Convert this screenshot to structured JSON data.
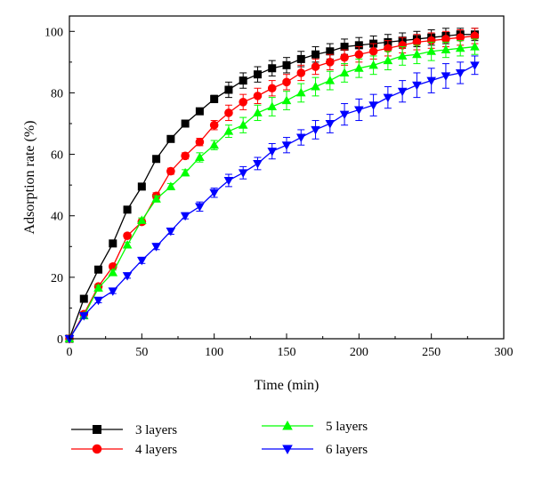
{
  "chart_data": {
    "type": "line",
    "xlabel": "Time (min)",
    "ylabel": "Adsorption rate (%)",
    "xlim": [
      0,
      300
    ],
    "ylim": [
      0,
      105
    ],
    "xticks": [
      0,
      50,
      100,
      150,
      200,
      250,
      300
    ],
    "yticks": [
      0,
      20,
      40,
      60,
      80,
      100
    ],
    "grid": false,
    "legend_position": "bottom",
    "x": [
      0,
      10,
      20,
      30,
      40,
      50,
      60,
      70,
      80,
      90,
      100,
      110,
      120,
      130,
      140,
      150,
      160,
      170,
      180,
      190,
      200,
      210,
      220,
      230,
      240,
      250,
      260,
      270,
      280
    ],
    "series": [
      {
        "name": "3 layers",
        "color": "#000000",
        "marker": "square",
        "values": [
          0,
          13,
          22.5,
          31,
          42,
          49.5,
          58.5,
          65,
          70,
          74,
          78,
          81,
          84,
          86,
          88,
          89,
          91,
          92.5,
          93.5,
          95,
          95.5,
          96,
          96.5,
          97,
          97.5,
          98,
          98.5,
          99,
          99
        ],
        "errors": [
          0,
          0.8,
          0.8,
          0.8,
          0.8,
          0.8,
          0.8,
          1,
          1,
          1,
          1.2,
          2.5,
          2.5,
          2.5,
          2.5,
          2.5,
          2.5,
          2.5,
          2.5,
          2.5,
          2.5,
          2.5,
          2.5,
          2.5,
          2.5,
          2.5,
          2.5,
          2,
          2
        ]
      },
      {
        "name": "4 layers",
        "color": "#ff0000",
        "marker": "circle",
        "values": [
          0,
          8,
          17,
          23.5,
          33.5,
          38,
          46.5,
          54.5,
          59.5,
          64,
          69.5,
          73.5,
          77,
          79,
          81.5,
          83.5,
          86.5,
          88.5,
          90,
          91.5,
          92.5,
          93.5,
          94.5,
          95.5,
          96.5,
          97,
          97.5,
          98,
          98.5
        ],
        "errors": [
          0,
          0.8,
          0.8,
          0.8,
          0.8,
          0.8,
          1,
          1,
          1,
          1.2,
          1.5,
          2.5,
          2.5,
          2.5,
          2.5,
          2.5,
          2.5,
          2.5,
          2.5,
          2.5,
          2.5,
          2.5,
          2.5,
          2.5,
          2.5,
          2.5,
          2.5,
          2.5,
          2.5
        ]
      },
      {
        "name": "5 layers",
        "color": "#00ff00",
        "marker": "triangle-up",
        "values": [
          0,
          7.5,
          16.5,
          21.5,
          30.5,
          38.5,
          45.5,
          49.5,
          54,
          59,
          63,
          67.5,
          69.5,
          73.5,
          75.5,
          77.5,
          80,
          82,
          84,
          86.5,
          88,
          89,
          90.5,
          92,
          92.5,
          93.5,
          94,
          94.5,
          95
        ],
        "errors": [
          0,
          0.8,
          0.8,
          0.8,
          0.8,
          0.8,
          1,
          1,
          1,
          1.5,
          1.5,
          2,
          2.5,
          2.5,
          3,
          3,
          3,
          3,
          3,
          3,
          3,
          3,
          3,
          3,
          3,
          3,
          2.5,
          2.5,
          2.5
        ]
      },
      {
        "name": "6 layers",
        "color": "#0000ff",
        "marker": "triangle-down",
        "values": [
          0,
          7.5,
          12.5,
          15.5,
          20.5,
          25.5,
          30,
          35,
          40,
          43,
          47.5,
          51.5,
          54,
          57,
          61,
          63,
          65.5,
          68,
          70,
          73,
          74.5,
          76,
          78.5,
          80.5,
          82.5,
          84,
          85.5,
          86.5,
          89
        ],
        "errors": [
          0,
          0.8,
          0.8,
          0.8,
          0.8,
          1,
          1,
          1,
          1,
          1.5,
          1.5,
          2,
          2,
          2,
          2.5,
          2.5,
          2.5,
          3,
          3,
          3.5,
          3.5,
          3.5,
          3.5,
          3.5,
          4,
          4,
          4,
          3.5,
          3
        ]
      }
    ]
  }
}
